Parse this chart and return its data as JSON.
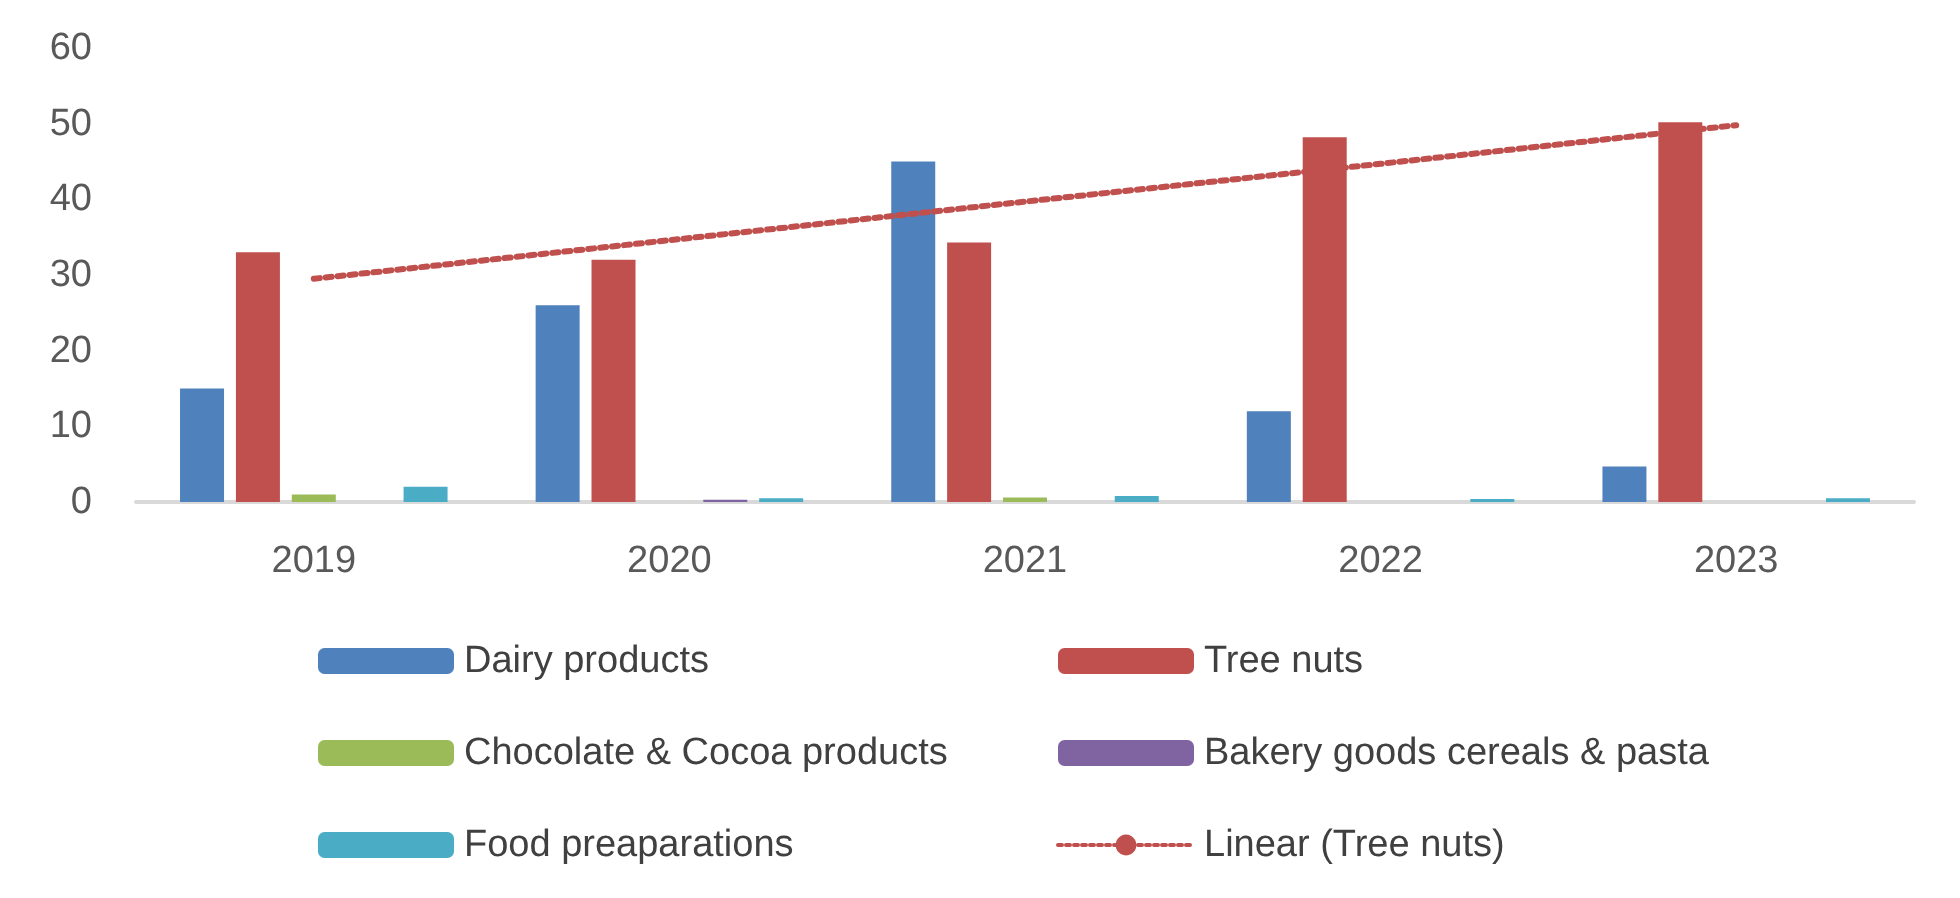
{
  "chart_data": {
    "type": "bar",
    "categories": [
      "2019",
      "2020",
      "2021",
      "2022",
      "2023"
    ],
    "series": [
      {
        "name": "Dairy products",
        "color": "#4f81bd",
        "values": [
          15,
          26,
          45,
          12,
          4.7
        ]
      },
      {
        "name": "Tree nuts",
        "color": "#c0504d",
        "values": [
          33,
          32,
          34.3,
          48.2,
          50.2
        ]
      },
      {
        "name": "Chocolate & Cocoa products",
        "color": "#9bbb59",
        "values": [
          1,
          0,
          0.6,
          0,
          0
        ]
      },
      {
        "name": "Bakery goods cereals & pasta",
        "color": "#8064a2",
        "values": [
          0,
          0.3,
          0,
          0,
          0
        ]
      },
      {
        "name": "Food preaparations",
        "color": "#4bacc6",
        "values": [
          2,
          0.5,
          0.8,
          0.4,
          0.5
        ]
      },
      {
        "name": "Linear (Tree nuts)",
        "type": "line",
        "line_style": "dotted",
        "marker": "none",
        "color": "#c0504d",
        "values": [
          29.5,
          34.6,
          39.7,
          44.7,
          49.8
        ]
      }
    ],
    "ylim": [
      0,
      60
    ],
    "yticks": [
      0,
      10,
      20,
      30,
      40,
      50,
      60
    ],
    "grid": false,
    "legend": "bottom"
  }
}
